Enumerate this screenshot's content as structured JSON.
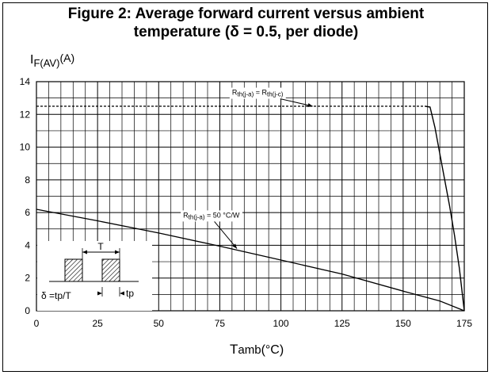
{
  "title_lines": [
    "Figure 2: Average forward current versus ambient",
    "temperature (δ = 0.5, per diode)"
  ],
  "chart_data": {
    "type": "line",
    "xlabel": {
      "main": "T",
      "sub": "amb",
      "unit": "(°C)"
    },
    "ylabel": {
      "main": "I",
      "sub": "F(AV)",
      "unit": "(A)"
    },
    "xlim": [
      0,
      175
    ],
    "ylim": [
      0,
      14
    ],
    "x_ticks": [
      0,
      25,
      50,
      75,
      100,
      125,
      150,
      175
    ],
    "y_ticks": [
      0,
      2,
      4,
      6,
      8,
      10,
      12,
      14
    ],
    "grid": true,
    "minor_x_step": 5,
    "series": [
      {
        "x": [
          0,
          159,
          161,
          163,
          165,
          167,
          169,
          171,
          173,
          175
        ],
        "y": [
          12.5,
          12.5,
          12.45,
          11.2,
          9.6,
          8.0,
          6.4,
          4.6,
          2.6,
          0
        ]
      },
      {
        "x": [
          0,
          25,
          50,
          75,
          100,
          125,
          150,
          165,
          175
        ],
        "y": [
          6.2,
          5.5,
          4.75,
          3.95,
          3.1,
          2.25,
          1.2,
          0.6,
          0
        ]
      }
    ],
    "annotations": [
      {
        "parts": [
          {
            "t": "R",
            "s": "main"
          },
          {
            "t": "th(j-a)",
            "s": "sub"
          },
          {
            "t": " = R",
            "s": "main"
          },
          {
            "t": "th(j-c)",
            "s": "sub"
          }
        ],
        "at": [
          80,
          13.1
        ],
        "arrow_to": [
          113,
          12.5
        ]
      },
      {
        "parts": [
          {
            "t": "R",
            "s": "main"
          },
          {
            "t": "th(j-a)",
            "s": "sub"
          },
          {
            "t": " = 50 °C/W",
            "s": "main"
          }
        ],
        "at": [
          60,
          5.6
        ],
        "arrow_to": [
          82,
          3.8
        ]
      }
    ],
    "inset": {
      "period_label": "T",
      "formula_label": "δ =tp/T",
      "tp_label": "tp"
    }
  }
}
